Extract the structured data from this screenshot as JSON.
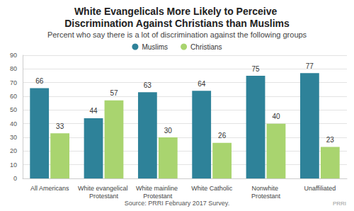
{
  "chart_data": {
    "type": "bar",
    "title": "White Evangelicals More Likely to Perceive Discrimination Against Christians than Muslims",
    "subtitle": "Percent who say there is a lot of discrimination against the following groups",
    "categories": [
      "All Americans",
      "White evangelical Protestant",
      "White mainline Protestant",
      "White Catholic",
      "Nonwhite Protestant",
      "Unaffiliated"
    ],
    "series": [
      {
        "name": "Muslims",
        "color": "#2e8299",
        "values": [
          66,
          44,
          63,
          64,
          75,
          77
        ]
      },
      {
        "name": "Christians",
        "color": "#a9d46f",
        "values": [
          33,
          57,
          30,
          26,
          40,
          23
        ]
      }
    ],
    "ylim": [
      0,
      90
    ],
    "yticks": [
      0,
      10,
      20,
      30,
      40,
      50,
      60,
      70,
      80,
      90
    ],
    "grid": true,
    "legend": "top",
    "data_labels": true,
    "source": "Source: PRRI February 2017 Survey.",
    "credit": "PRRI"
  }
}
